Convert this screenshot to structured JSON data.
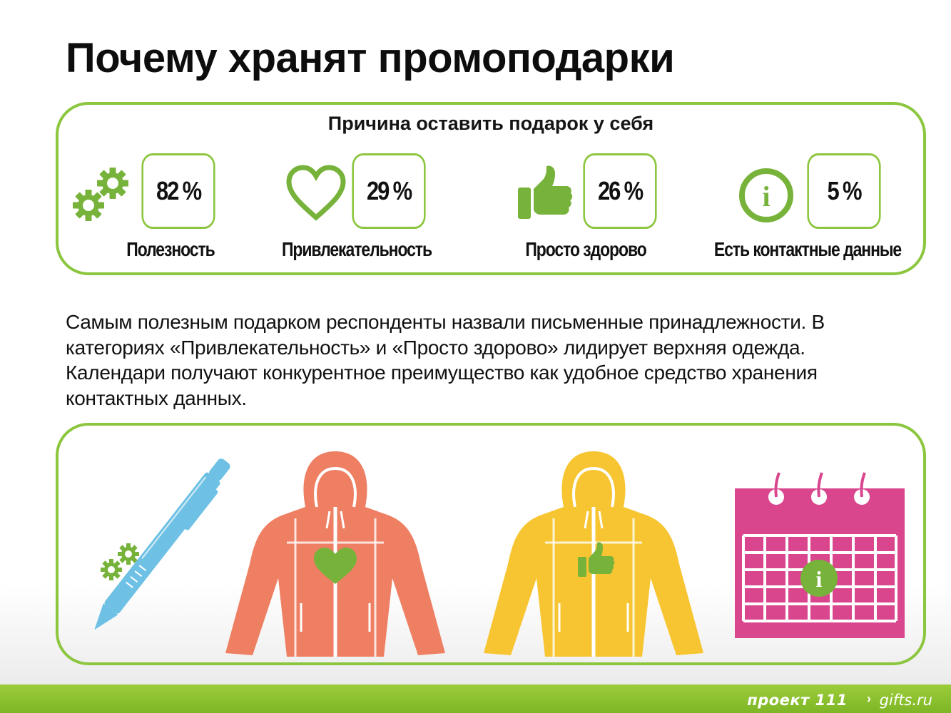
{
  "title": "Почему хранят промоподарки",
  "reasons": {
    "heading": "Причина оставить подарок у себя",
    "items": [
      {
        "icon": "gears-icon",
        "value": "82 %",
        "label": "Полезность"
      },
      {
        "icon": "heart-icon",
        "value": "29 %",
        "label": "Привлекательность"
      },
      {
        "icon": "thumbs-up-icon",
        "value": "26 %",
        "label": "Просто здорово"
      },
      {
        "icon": "info-icon",
        "value": "5 %",
        "label": "Есть контактные данные"
      }
    ]
  },
  "description": "Самым полезным подарком респонденты назвали письменные принадлежности. В категориях «Привлекательность» и «Просто здорово» лидирует верхняя одежда. Календари получают конкурентное преимущество как удобное средство хранения контактных данных.",
  "illustrations": [
    {
      "icon": "pen-icon"
    },
    {
      "icon": "orange-jacket-icon"
    },
    {
      "icon": "yellow-jacket-icon"
    },
    {
      "icon": "calendar-icon"
    }
  ],
  "footer": {
    "brand": "проект 111",
    "site": "gifts.ru"
  },
  "colors": {
    "accent_green": "#8cc63f",
    "icon_green": "#77b23a",
    "pen_blue": "#6ec1e4",
    "jacket_orange": "#ee7f62",
    "jacket_yellow": "#f7c531",
    "calendar_pink": "#d9468e"
  }
}
